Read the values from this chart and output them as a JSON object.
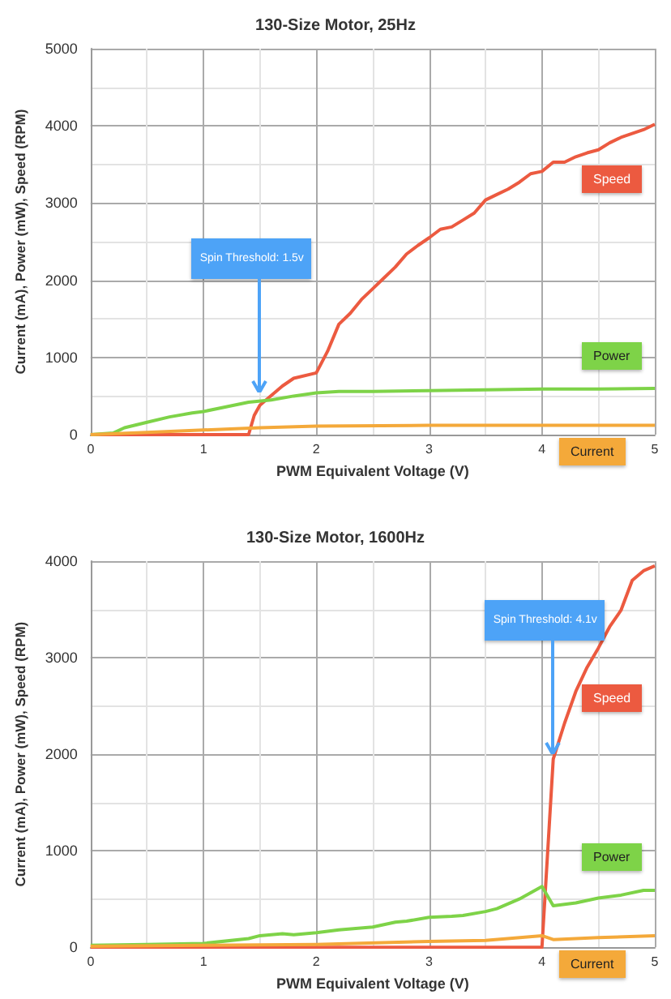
{
  "chart_data": [
    {
      "type": "line",
      "title": "130-Size Motor, 25Hz",
      "xlabel": "PWM Equivalent Voltage (V)",
      "ylabel": "Current (mA), Power (mW), Speed (RPM)",
      "xlim": [
        0,
        5
      ],
      "xticks": [
        0,
        1,
        2,
        3,
        4,
        5
      ],
      "ylim": [
        0,
        5000
      ],
      "yticks": [
        0,
        1000,
        2000,
        3000,
        4000,
        5000
      ],
      "grid": true,
      "marker": "none",
      "series": [
        {
          "name": "Speed",
          "color": "#ec5a40",
          "x": [
            0,
            0.5,
            1,
            1.4,
            1.45,
            1.5,
            1.7,
            1.8,
            2,
            2.1,
            2.2,
            2.3,
            2.4,
            2.5,
            2.6,
            2.7,
            2.8,
            2.9,
            3,
            3.1,
            3.2,
            3.3,
            3.4,
            3.5,
            3.6,
            3.7,
            3.8,
            3.9,
            4,
            4.1,
            4.2,
            4.3,
            4.4,
            4.5,
            4.6,
            4.7,
            4.8,
            4.9,
            5
          ],
          "values": [
            0,
            0,
            0,
            0,
            250,
            380,
            630,
            730,
            800,
            1080,
            1430,
            1570,
            1750,
            1890,
            2030,
            2170,
            2340,
            2450,
            2550,
            2660,
            2690,
            2780,
            2870,
            3040,
            3110,
            3180,
            3270,
            3380,
            3410,
            3530,
            3530,
            3600,
            3650,
            3690,
            3780,
            3850,
            3900,
            3950,
            4020
          ]
        },
        {
          "name": "Power",
          "color": "#7ed348",
          "x": [
            0,
            0.2,
            0.3,
            0.5,
            0.7,
            0.9,
            1,
            1.2,
            1.4,
            1.6,
            1.8,
            2,
            2.2,
            2.5,
            3,
            3.5,
            4,
            4.5,
            5
          ],
          "values": [
            0,
            20,
            90,
            160,
            230,
            280,
            300,
            360,
            420,
            450,
            500,
            540,
            560,
            560,
            570,
            580,
            590,
            590,
            600
          ]
        },
        {
          "name": "Current",
          "color": "#f4a93a",
          "x": [
            0,
            0.5,
            1,
            1.5,
            2,
            3,
            4,
            5
          ],
          "values": [
            0,
            30,
            60,
            90,
            110,
            120,
            120,
            120
          ]
        }
      ],
      "annotations": [
        {
          "text": "Spin Threshold: 1.5v",
          "x": 1.5,
          "y": 550
        }
      ]
    },
    {
      "type": "line",
      "title": "130-Size Motor, 1600Hz",
      "xlabel": "PWM Equivalent Voltage (V)",
      "ylabel": "Current (mA), Power (mW), Speed (RPM)",
      "xlim": [
        0,
        5
      ],
      "xticks": [
        0,
        1,
        2,
        3,
        4,
        5
      ],
      "ylim": [
        0,
        4000
      ],
      "yticks": [
        0,
        1000,
        2000,
        3000,
        4000
      ],
      "grid": true,
      "marker": "none",
      "series": [
        {
          "name": "Speed",
          "color": "#ec5a40",
          "x": [
            0,
            1,
            2,
            3,
            4,
            4.1,
            4.2,
            4.3,
            4.4,
            4.5,
            4.6,
            4.7,
            4.8,
            4.9,
            5
          ],
          "values": [
            0,
            0,
            0,
            0,
            0,
            1950,
            2320,
            2650,
            2900,
            3100,
            3320,
            3490,
            3800,
            3900,
            3950
          ]
        },
        {
          "name": "Power",
          "color": "#7ed348",
          "x": [
            0,
            0.5,
            1,
            1.4,
            1.5,
            1.7,
            1.8,
            2,
            2.2,
            2.5,
            2.7,
            2.8,
            3,
            3.2,
            3.3,
            3.5,
            3.6,
            3.8,
            4,
            4.1,
            4.3,
            4.5,
            4.7,
            4.9,
            5
          ],
          "values": [
            20,
            30,
            40,
            90,
            120,
            140,
            130,
            150,
            180,
            210,
            260,
            270,
            310,
            320,
            330,
            370,
            400,
            500,
            630,
            430,
            460,
            510,
            540,
            590,
            590
          ]
        },
        {
          "name": "Current",
          "color": "#f4a93a",
          "x": [
            0,
            1,
            2,
            3,
            3.5,
            4,
            4.1,
            4.5,
            5
          ],
          "values": [
            10,
            20,
            30,
            60,
            70,
            120,
            80,
            100,
            120
          ]
        }
      ],
      "annotations": [
        {
          "text": "Spin Threshold: 4.1v",
          "x": 4.1,
          "y": 2000
        }
      ]
    }
  ]
}
